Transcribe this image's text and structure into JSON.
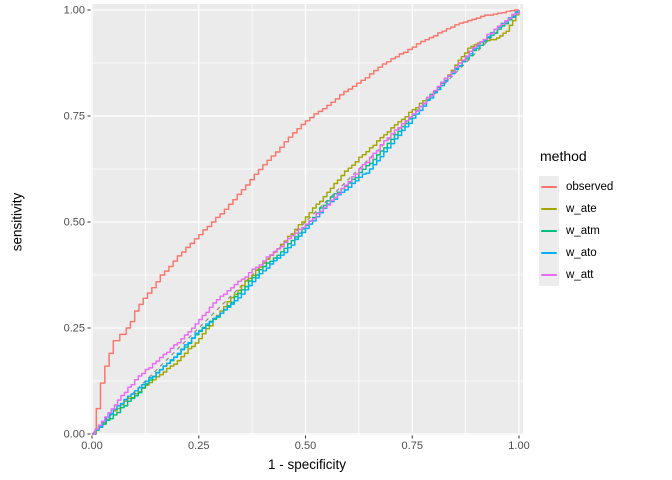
{
  "chart_data": {
    "type": "line",
    "title": "",
    "xlabel": "1 - specificity",
    "ylabel": "sensitivity",
    "legend_title": "method",
    "legend_position": "right",
    "xlim": [
      0,
      1
    ],
    "ylim": [
      0,
      1
    ],
    "ticks": [
      0,
      0.25,
      0.5,
      0.75,
      1
    ],
    "minor_ticks": [
      0.125,
      0.375,
      0.625,
      0.875
    ],
    "x_tick_labels": [
      "0.00",
      "0.25",
      "0.50",
      "0.75",
      "1.00"
    ],
    "y_tick_labels": [
      "0.00",
      "0.25",
      "0.50",
      "0.75",
      "1.00"
    ],
    "grid": true,
    "colors": {
      "panel_bg": "#EBEBEB",
      "grid": "#FFFFFF",
      "tick_mark": "#333333",
      "tick_label": "#4D4D4D",
      "axis_title": "#000000",
      "reference_line": "#8C8C8C",
      "legend_key_bg": "#ECECEC"
    },
    "reference_line": {
      "style": "dashed",
      "x": [
        0,
        1
      ],
      "y": [
        0,
        1
      ]
    },
    "series": [
      {
        "name": "observed",
        "color": "#F8766D",
        "x": [
          0,
          0.01,
          0.02,
          0.03,
          0.04,
          0.05,
          0.065,
          0.08,
          0.09,
          0.1,
          0.12,
          0.14,
          0.16,
          0.18,
          0.2,
          0.22,
          0.25,
          0.28,
          0.31,
          0.34,
          0.37,
          0.4,
          0.43,
          0.46,
          0.49,
          0.52,
          0.55,
          0.58,
          0.61,
          0.64,
          0.67,
          0.7,
          0.73,
          0.76,
          0.79,
          0.82,
          0.85,
          0.88,
          0.91,
          0.94,
          0.97,
          1
        ],
        "y": [
          0,
          0.06,
          0.12,
          0.16,
          0.19,
          0.22,
          0.235,
          0.25,
          0.265,
          0.29,
          0.32,
          0.345,
          0.375,
          0.395,
          0.42,
          0.44,
          0.47,
          0.5,
          0.53,
          0.565,
          0.6,
          0.635,
          0.665,
          0.7,
          0.73,
          0.755,
          0.775,
          0.8,
          0.82,
          0.84,
          0.865,
          0.885,
          0.9,
          0.92,
          0.935,
          0.95,
          0.965,
          0.975,
          0.985,
          0.99,
          0.997,
          1
        ]
      },
      {
        "name": "w_ate",
        "color": "#A3A500",
        "x": [
          0,
          0.05,
          0.1,
          0.15,
          0.2,
          0.25,
          0.3,
          0.35,
          0.4,
          0.45,
          0.5,
          0.55,
          0.6,
          0.65,
          0.7,
          0.75,
          0.8,
          0.85,
          0.88,
          0.91,
          0.94,
          0.97,
          1
        ],
        "y": [
          0,
          0.055,
          0.095,
          0.135,
          0.173,
          0.225,
          0.29,
          0.35,
          0.403,
          0.455,
          0.512,
          0.57,
          0.627,
          0.675,
          0.722,
          0.765,
          0.805,
          0.87,
          0.91,
          0.925,
          0.93,
          0.95,
          1
        ]
      },
      {
        "name": "w_atm",
        "color": "#00BF7D",
        "x": [
          0,
          0.05,
          0.1,
          0.15,
          0.2,
          0.25,
          0.3,
          0.35,
          0.4,
          0.45,
          0.5,
          0.55,
          0.6,
          0.65,
          0.7,
          0.75,
          0.8,
          0.85,
          0.9,
          0.95,
          1
        ],
        "y": [
          0,
          0.045,
          0.09,
          0.145,
          0.188,
          0.242,
          0.285,
          0.34,
          0.395,
          0.438,
          0.492,
          0.55,
          0.592,
          0.638,
          0.695,
          0.752,
          0.808,
          0.862,
          0.91,
          0.955,
          1
        ]
      },
      {
        "name": "w_ato",
        "color": "#00B0F6",
        "x": [
          0,
          0.05,
          0.1,
          0.15,
          0.2,
          0.25,
          0.3,
          0.35,
          0.4,
          0.45,
          0.5,
          0.55,
          0.6,
          0.65,
          0.7,
          0.75,
          0.8,
          0.85,
          0.9,
          0.95,
          1
        ],
        "y": [
          0,
          0.058,
          0.102,
          0.144,
          0.19,
          0.244,
          0.285,
          0.33,
          0.385,
          0.428,
          0.485,
          0.542,
          0.582,
          0.625,
          0.685,
          0.745,
          0.805,
          0.86,
          0.915,
          0.96,
          1
        ]
      },
      {
        "name": "w_att",
        "color": "#E76BF3",
        "x": [
          0,
          0.03,
          0.06,
          0.1,
          0.15,
          0.2,
          0.25,
          0.3,
          0.35,
          0.4,
          0.45,
          0.5,
          0.55,
          0.6,
          0.65,
          0.7,
          0.75,
          0.8,
          0.85,
          0.9,
          0.95,
          1
        ],
        "y": [
          0,
          0.04,
          0.08,
          0.128,
          0.172,
          0.215,
          0.27,
          0.325,
          0.365,
          0.408,
          0.452,
          0.495,
          0.54,
          0.595,
          0.652,
          0.708,
          0.755,
          0.81,
          0.865,
          0.918,
          0.962,
          1
        ]
      }
    ]
  }
}
